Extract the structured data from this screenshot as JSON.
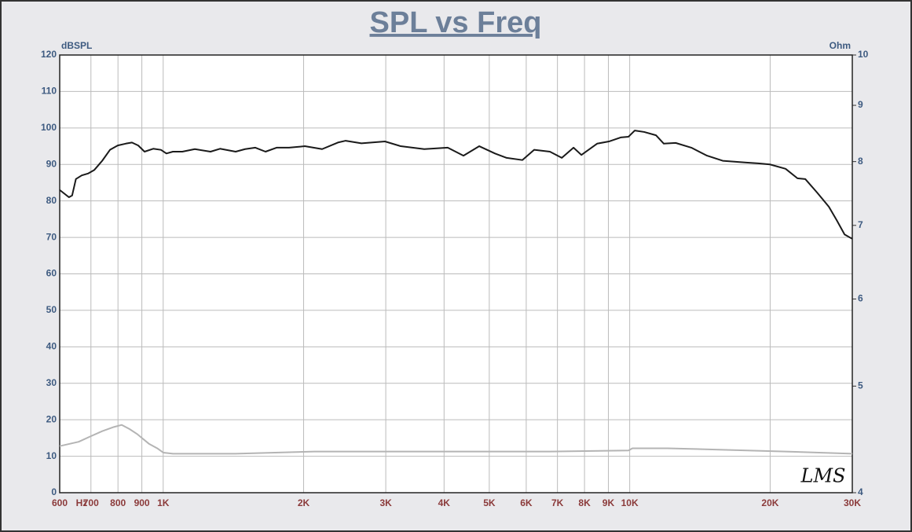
{
  "chart_data": {
    "type": "line",
    "title": "SPL vs Freq",
    "ylabel": "dBSPL",
    "y2label": "Ohm",
    "xlabel": "Hz",
    "logo": "LMS",
    "xlog": true,
    "y2log": true,
    "grid": true,
    "xlim": [
      600,
      30000
    ],
    "xticks": [
      600,
      700,
      800,
      900,
      {
        "value": 1000,
        "label": "1K"
      },
      {
        "value": 2000,
        "label": "2K"
      },
      {
        "value": 3000,
        "label": "3K"
      },
      {
        "value": 4000,
        "label": "4K"
      },
      {
        "value": 5000,
        "label": "5K"
      },
      {
        "value": 6000,
        "label": "6K"
      },
      {
        "value": 7000,
        "label": "7K"
      },
      {
        "value": 8000,
        "label": "8K"
      },
      {
        "value": 9000,
        "label": "9K"
      },
      {
        "value": 10000,
        "label": "10K"
      },
      {
        "value": 20000,
        "label": "20K"
      },
      {
        "value": 30000,
        "label": "30K"
      }
    ],
    "ylim": [
      0,
      120
    ],
    "yticks": [
      0,
      10,
      20,
      30,
      40,
      50,
      60,
      70,
      80,
      90,
      100,
      110,
      120
    ],
    "y2lim": [
      4,
      10
    ],
    "y2ticks": [
      4,
      5,
      6,
      7,
      8,
      9,
      10
    ],
    "series": [
      {
        "color": "#1a1a1a",
        "x": [
          600,
          628,
          638,
          650,
          669,
          690,
          712,
          740,
          769,
          799,
          831,
          857,
          884,
          912,
          952,
          989,
          1016,
          1049,
          1099,
          1169,
          1263,
          1324,
          1430,
          1498,
          1576,
          1657,
          1750,
          1861,
          2012,
          2191,
          2368,
          2461,
          2660,
          2988,
          3229,
          3627,
          4073,
          4402,
          4759,
          5142,
          5449,
          5889,
          6240,
          6744,
          7152,
          7578,
          7878,
          8514,
          9024,
          9564,
          9942,
          10254,
          10740,
          11382,
          11832,
          12546,
          13554,
          14646,
          15828,
          17784,
          18852,
          19980,
          21582,
          22884,
          23784,
          25212,
          26724,
          27780,
          28878,
          30000
        ],
        "values": [
          83,
          81,
          81.5,
          86,
          87,
          87.5,
          88.5,
          91,
          94,
          95.2,
          95.7,
          96,
          95.2,
          93.5,
          94.3,
          94,
          93,
          93.5,
          93.5,
          94.2,
          93.5,
          94.3,
          93.5,
          94.2,
          94.6,
          93.5,
          94.6,
          94.6,
          95,
          94.2,
          96,
          96.5,
          95.8,
          96.3,
          95,
          94.2,
          94.6,
          92.4,
          95,
          93,
          91.8,
          91.2,
          94,
          93.5,
          91.8,
          94.6,
          92.6,
          95.7,
          96.3,
          97.4,
          97.6,
          99.3,
          98.9,
          98,
          95.7,
          95.9,
          94.6,
          92.4,
          91,
          90.5,
          90.3,
          90,
          88.8,
          86.2,
          86,
          82.3,
          78.4,
          74.7,
          70.8,
          69.6
        ]
      },
      {
        "color": "#b4b4b4",
        "axis": "y2",
        "x": [
          600,
          659,
          698,
          740,
          784,
          815,
          847,
          881,
          933,
          971,
          1001,
          1049,
          1430,
          2108,
          3106,
          4576,
          6744,
          9942,
          10134,
          12066,
          21582,
          30000
        ],
        "values": [
          4.41,
          4.45,
          4.5,
          4.55,
          4.59,
          4.61,
          4.57,
          4.52,
          4.43,
          4.39,
          4.35,
          4.34,
          4.34,
          4.36,
          4.36,
          4.36,
          4.36,
          4.37,
          4.39,
          4.39,
          4.36,
          4.34
        ]
      }
    ]
  }
}
